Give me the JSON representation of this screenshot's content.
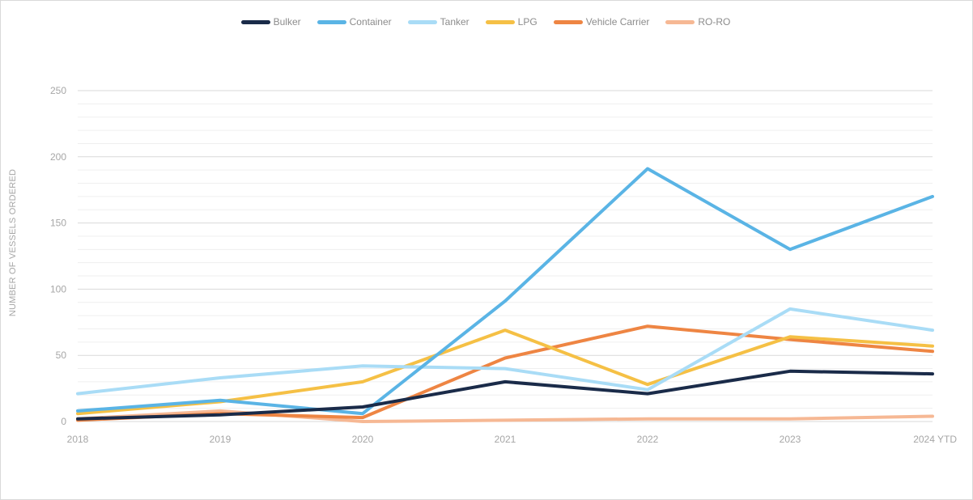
{
  "chart_data": {
    "type": "line",
    "title": "",
    "xlabel": "",
    "ylabel": "NUMBER OF VESSELS ORDERED",
    "categories": [
      "2018",
      "2019",
      "2020",
      "2021",
      "2022",
      "2023",
      "2024 YTD"
    ],
    "ylim": [
      0,
      250
    ],
    "yticks": [
      0,
      50,
      100,
      150,
      200,
      250
    ],
    "grid": true,
    "legend_position": "top",
    "series": [
      {
        "name": "Bulker",
        "color": "#1a2b49",
        "values": [
          2,
          5,
          11,
          30,
          21,
          38,
          36
        ]
      },
      {
        "name": "Container",
        "color": "#5ab4e5",
        "values": [
          8,
          16,
          6,
          91,
          191,
          130,
          170
        ]
      },
      {
        "name": "Tanker",
        "color": "#a9dcf6",
        "values": [
          21,
          33,
          42,
          40,
          24,
          85,
          69
        ]
      },
      {
        "name": "LPG",
        "color": "#f5c045",
        "values": [
          6,
          15,
          30,
          69,
          28,
          64,
          57
        ]
      },
      {
        "name": "Vehicle Carrier",
        "color": "#ee8543",
        "values": [
          1,
          6,
          3,
          48,
          72,
          62,
          53
        ]
      },
      {
        "name": "RO-RO",
        "color": "#f6b894",
        "values": [
          2,
          8,
          0,
          1,
          2,
          2,
          4
        ]
      }
    ]
  }
}
